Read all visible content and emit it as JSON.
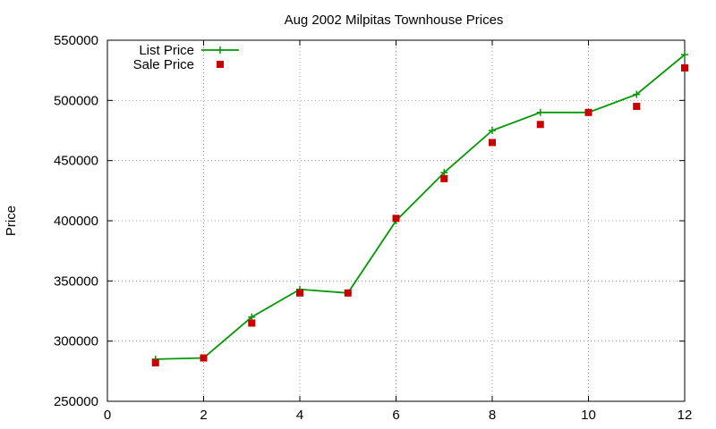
{
  "chart_data": {
    "type": "line",
    "title": "Aug 2002 Milpitas Townhouse Prices",
    "xlabel": "",
    "ylabel": "Price",
    "xlim": [
      0,
      12
    ],
    "ylim": [
      250000,
      550000
    ],
    "xticks": [
      0,
      2,
      4,
      6,
      8,
      10,
      12
    ],
    "yticks": [
      250000,
      300000,
      350000,
      400000,
      450000,
      500000,
      550000
    ],
    "grid": true,
    "legend_position": "top-left",
    "x": [
      1,
      2,
      3,
      4,
      5,
      6,
      7,
      8,
      9,
      10,
      11,
      12
    ],
    "series": [
      {
        "name": "List Price",
        "style": "line-with-plus-markers",
        "color": "#009900",
        "values": [
          285000,
          286000,
          320000,
          343000,
          340000,
          400000,
          440000,
          475000,
          490000,
          490000,
          505000,
          538000
        ]
      },
      {
        "name": "Sale Price",
        "style": "square-markers",
        "color": "#c80000",
        "values": [
          282000,
          286000,
          315000,
          340000,
          340000,
          402000,
          435000,
          465000,
          480000,
          490000,
          495000,
          527000
        ]
      }
    ]
  }
}
